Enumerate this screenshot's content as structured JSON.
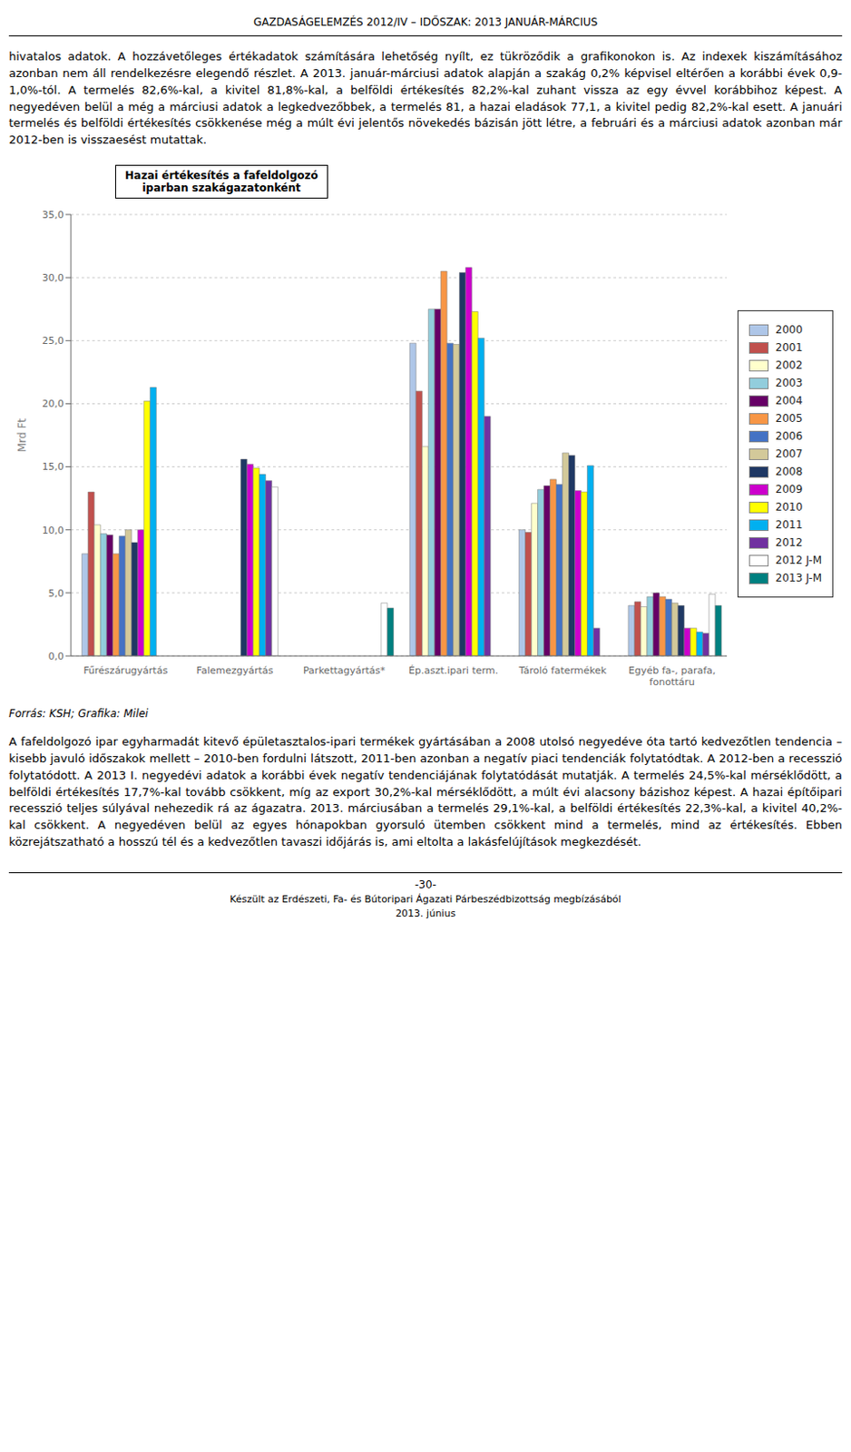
{
  "chart_data": {
    "type": "bar",
    "title": "Hazai értékesítés a fafeldolgozó\niparban szakágazatonként",
    "ylabel": "Mrd Ft",
    "categories": [
      "Fűrészárugyártás",
      "Falemezgyártás",
      "Parkettagyártás*",
      "Ép.aszt.ipari term.",
      "Tároló fatermékek",
      "Egyéb fa-, parafa,\nfonottáru"
    ],
    "series": [
      {
        "name": "2000",
        "color": "#aec6e8",
        "values": [
          8.1,
          0.0,
          0.0,
          24.8,
          10.0,
          4.0
        ]
      },
      {
        "name": "2001",
        "color": "#c0504d",
        "values": [
          13.0,
          0.0,
          0.0,
          21.0,
          9.8,
          4.3
        ]
      },
      {
        "name": "2002",
        "color": "#ffffcc",
        "values": [
          10.4,
          0.0,
          0.0,
          16.6,
          12.1,
          3.9
        ]
      },
      {
        "name": "2003",
        "color": "#92cddc",
        "values": [
          9.7,
          0.0,
          0.0,
          27.5,
          13.2,
          4.7
        ]
      },
      {
        "name": "2004",
        "color": "#660066",
        "values": [
          9.6,
          0.0,
          0.0,
          27.5,
          13.5,
          5.0
        ]
      },
      {
        "name": "2005",
        "color": "#f79646",
        "values": [
          8.1,
          0.0,
          0.0,
          30.5,
          14.0,
          4.7
        ]
      },
      {
        "name": "2006",
        "color": "#4472c4",
        "values": [
          9.5,
          0.0,
          0.0,
          24.8,
          13.6,
          4.5
        ]
      },
      {
        "name": "2007",
        "color": "#d3c99a",
        "values": [
          10.0,
          0.0,
          0.0,
          24.7,
          16.1,
          4.2
        ]
      },
      {
        "name": "2008",
        "color": "#1f3864",
        "values": [
          9.0,
          15.6,
          0.0,
          30.4,
          15.9,
          4.0
        ]
      },
      {
        "name": "2009",
        "color": "#cc00cc",
        "values": [
          10.0,
          15.2,
          0.0,
          30.8,
          13.1,
          2.2
        ]
      },
      {
        "name": "2010",
        "color": "#ffff00",
        "values": [
          20.2,
          14.9,
          0.0,
          27.3,
          13.0,
          2.2
        ]
      },
      {
        "name": "2011",
        "color": "#00b0f0",
        "values": [
          21.3,
          14.4,
          0.0,
          25.2,
          15.1,
          1.9
        ]
      },
      {
        "name": "2012",
        "color": "#7030a0",
        "values": [
          0.0,
          13.9,
          0.0,
          19.0,
          2.2,
          1.8
        ]
      },
      {
        "name": "2012 J-M",
        "color": "#ffffff",
        "values": [
          0.0,
          13.4,
          4.2,
          0.0,
          0.0,
          4.9
        ]
      },
      {
        "name": "2013 J-M",
        "color": "#008080",
        "values": [
          0.0,
          0.0,
          3.8,
          0.0,
          0.0,
          4.0
        ]
      }
    ],
    "ylim": [
      0,
      35
    ],
    "yticks": [
      {
        "value": 0,
        "label": "0,0"
      },
      {
        "value": 5,
        "label": "5,0"
      },
      {
        "value": 10,
        "label": "10,0"
      },
      {
        "value": 15,
        "label": "15,0"
      },
      {
        "value": 20,
        "label": "20,0"
      },
      {
        "value": 25,
        "label": "25,0"
      },
      {
        "value": 30,
        "label": "30,0"
      },
      {
        "value": 35,
        "label": "35,0"
      }
    ],
    "grid": true,
    "legend": "right",
    "annotations": [
      "GAZDASÁGELEMZÉS 2012/IV – IDŐSZAK: 2013 JANUÁR-MÁRCIUS",
      "hivatalos adatok. A hozzávetőleges értékadatok számítására lehetőség nyílt, ez tükröződik a grafikonokon is. Az indexek kiszámításához azonban nem áll rendelkezésre elegendő részlet. A 2013. január-márciusi adatok alapján a szakág 0,2% képvisel eltérően a korábbi évek 0,9-1,0%-tól. A termelés 82,6%-kal, a kivitel 81,8%-kal, a belföldi értékesítés 82,2%-kal zuhant vissza az egy évvel korábbihoz képest. A negyedéven belül a még a márciusi adatok a legkedvezőbbek, a termelés 81, a hazai eladások 77,1, a kivitel pedig 82,2%-kal esett. A januári termelés és belföldi értékesítés csökkenése még a múlt évi jelentős növekedés bázisán jött létre, a februári és a márciusi adatok azonban már 2012-ben is visszaesést mutattak.",
      "Forrás: KSH; Grafika: Milei",
      "A fafeldolgozó ipar egyharmadát kitevő épületasztalos-ipari termékek gyártásában a 2008 utolsó negyedéve óta tartó kedvezőtlen tendencia – kisebb javuló időszakok mellett – 2010-ben fordulni látszott, 2011-ben azonban a negatív piaci tendenciák folytatódtak. A 2012-ben a recesszió folytatódott. A 2013 I. negyedévi adatok a korábbi évek negatív tendenciájának folytatódását mutatják. A termelés 24,5%-kal mérséklődött, a belföldi értékesítés 17,7%-kal tovább csökkent, míg az export 30,2%-kal mérséklődött, a múlt évi alacsony bázishoz képest. A hazai építőipari recesszió teljes súlyával nehezedik rá az ágazatra. 2013. márciusában a termelés 29,1%-kal, a belföldi értékesítés 22,3%-kal, a kivitel 40,2%-kal csökkent. A negyedéven belül az egyes hónapokban gyorsuló ütemben csökkent mind a termelés, mind az értékesítés. Ebben közrejátszatható a hosszú tél és a kedvezőtlen tavaszi időjárás is, ami eltolta a lakásfelújítások megkezdését.",
      "-30-",
      "Készült az Erdészeti, Fa- és Bútoripari Ágazati Párbeszédbizottság megbízásából",
      "2013. június"
    ]
  }
}
